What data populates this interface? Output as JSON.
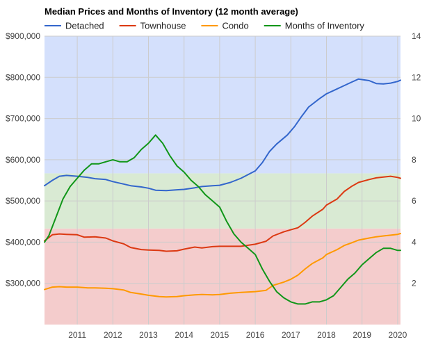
{
  "chart_data": {
    "type": "line",
    "title": "Median Prices and Months of Inventory (12 month average)",
    "legend_position": "top",
    "grid": true,
    "background_bands": [
      {
        "from": 200000,
        "to": 433000,
        "color": "#f4cccc"
      },
      {
        "from": 433000,
        "to": 567000,
        "color": "#d9ead3"
      },
      {
        "from": 567000,
        "to": 900000,
        "color": "#d4e0fc"
      }
    ],
    "x_ticks": [
      "2011",
      "2012",
      "2013",
      "2014",
      "2015",
      "2016",
      "2017",
      "2018",
      "2019",
      "2020"
    ],
    "x_tick_values": [
      2011,
      2012,
      2013,
      2014,
      2015,
      2016,
      2017,
      2018,
      2019,
      2020
    ],
    "xlim": [
      2010.08,
      2020.08
    ],
    "y_left": {
      "ylim": [
        200000,
        900000
      ],
      "ticks": [
        "$300,000",
        "$400,000",
        "$500,000",
        "$600,000",
        "$700,000",
        "$800,000",
        "$900,000"
      ],
      "tick_values": [
        300000,
        400000,
        500000,
        600000,
        700000,
        800000,
        900000
      ]
    },
    "y_right": {
      "ylim": [
        0,
        14
      ],
      "ticks": [
        "2",
        "4",
        "6",
        "8",
        "10",
        "12",
        "14"
      ],
      "tick_values": [
        2,
        4,
        6,
        8,
        10,
        12,
        14
      ]
    },
    "series": [
      {
        "name": "Detached",
        "color": "#3366cc",
        "axis": "left",
        "x": [
          2010.08,
          2010.3,
          2010.5,
          2010.7,
          2011.0,
          2011.3,
          2011.5,
          2011.8,
          2012.0,
          2012.3,
          2012.5,
          2012.8,
          2013.0,
          2013.2,
          2013.5,
          2013.8,
          2014.0,
          2014.3,
          2014.5,
          2014.8,
          2015.0,
          2015.3,
          2015.6,
          2016.0,
          2016.2,
          2016.4,
          2016.6,
          2016.9,
          2017.1,
          2017.3,
          2017.5,
          2017.8,
          2018.0,
          2018.2,
          2018.5,
          2018.7,
          2018.9,
          2019.2,
          2019.4,
          2019.6,
          2019.8,
          2020.0,
          2020.08
        ],
        "values": [
          537000,
          550000,
          560000,
          562000,
          560000,
          557000,
          554000,
          552000,
          547000,
          541000,
          537000,
          534000,
          531000,
          526000,
          525000,
          527000,
          528000,
          532000,
          535000,
          537000,
          538000,
          545000,
          555000,
          573000,
          593000,
          620000,
          638000,
          660000,
          680000,
          705000,
          728000,
          748000,
          760000,
          768000,
          780000,
          788000,
          796000,
          792000,
          785000,
          784000,
          786000,
          790000,
          793000
        ]
      },
      {
        "name": "Townhouse",
        "color": "#dc3912",
        "axis": "left",
        "x": [
          2010.08,
          2010.3,
          2010.5,
          2010.7,
          2011.0,
          2011.2,
          2011.5,
          2011.8,
          2012.0,
          2012.3,
          2012.5,
          2012.8,
          2013.0,
          2013.3,
          2013.5,
          2013.8,
          2014.0,
          2014.3,
          2014.5,
          2014.8,
          2015.0,
          2015.3,
          2015.6,
          2016.0,
          2016.3,
          2016.5,
          2016.8,
          2017.0,
          2017.2,
          2017.4,
          2017.6,
          2017.9,
          2018.0,
          2018.3,
          2018.5,
          2018.7,
          2018.9,
          2019.2,
          2019.4,
          2019.6,
          2019.8,
          2020.0,
          2020.08
        ],
        "values": [
          403000,
          418000,
          420000,
          419000,
          418000,
          412000,
          413000,
          410000,
          403000,
          396000,
          387000,
          382000,
          381000,
          380000,
          378000,
          379000,
          383000,
          388000,
          386000,
          389000,
          390000,
          390000,
          390000,
          395000,
          402000,
          415000,
          425000,
          430000,
          435000,
          448000,
          463000,
          480000,
          490000,
          505000,
          523000,
          535000,
          545000,
          552000,
          556000,
          558000,
          560000,
          557000,
          555000
        ]
      },
      {
        "name": "Condo",
        "color": "#ff9900",
        "axis": "left",
        "x": [
          2010.08,
          2010.3,
          2010.5,
          2010.7,
          2011.0,
          2011.3,
          2011.5,
          2011.8,
          2012.0,
          2012.3,
          2012.5,
          2012.8,
          2013.0,
          2013.3,
          2013.5,
          2013.8,
          2014.0,
          2014.3,
          2014.5,
          2014.8,
          2015.0,
          2015.3,
          2015.6,
          2016.0,
          2016.3,
          2016.5,
          2016.8,
          2017.0,
          2017.2,
          2017.4,
          2017.6,
          2017.9,
          2018.0,
          2018.3,
          2018.5,
          2018.7,
          2018.9,
          2019.2,
          2019.4,
          2019.6,
          2019.8,
          2020.0,
          2020.08
        ],
        "values": [
          285000,
          291000,
          292000,
          291000,
          291000,
          289000,
          289000,
          288000,
          287000,
          284000,
          278000,
          274000,
          271000,
          268000,
          267000,
          268000,
          270000,
          272000,
          273000,
          272000,
          273000,
          276000,
          278000,
          280000,
          283000,
          295000,
          303000,
          310000,
          320000,
          335000,
          348000,
          362000,
          370000,
          382000,
          392000,
          398000,
          405000,
          410000,
          413000,
          415000,
          417000,
          419000,
          421000
        ]
      },
      {
        "name": "Months of Inventory",
        "color": "#109618",
        "axis": "right",
        "x": [
          2010.08,
          2010.2,
          2010.4,
          2010.6,
          2010.8,
          2011.0,
          2011.2,
          2011.4,
          2011.6,
          2011.8,
          2012.0,
          2012.2,
          2012.4,
          2012.6,
          2012.8,
          2013.0,
          2013.2,
          2013.4,
          2013.6,
          2013.8,
          2014.0,
          2014.2,
          2014.4,
          2014.6,
          2014.8,
          2015.0,
          2015.2,
          2015.4,
          2015.6,
          2015.8,
          2016.0,
          2016.2,
          2016.4,
          2016.6,
          2016.8,
          2017.0,
          2017.2,
          2017.4,
          2017.6,
          2017.8,
          2018.0,
          2018.2,
          2018.4,
          2018.6,
          2018.8,
          2019.0,
          2019.2,
          2019.4,
          2019.6,
          2019.8,
          2020.0,
          2020.08
        ],
        "values": [
          4.0,
          4.3,
          5.2,
          6.1,
          6.7,
          7.1,
          7.5,
          7.8,
          7.8,
          7.9,
          8.0,
          7.9,
          7.9,
          8.1,
          8.5,
          8.8,
          9.2,
          8.8,
          8.2,
          7.7,
          7.4,
          7.0,
          6.7,
          6.3,
          6.0,
          5.7,
          5.0,
          4.4,
          4.0,
          3.7,
          3.4,
          2.7,
          2.1,
          1.6,
          1.3,
          1.1,
          1.0,
          1.0,
          1.1,
          1.1,
          1.2,
          1.4,
          1.8,
          2.2,
          2.5,
          2.9,
          3.2,
          3.5,
          3.7,
          3.7,
          3.6,
          3.6
        ]
      }
    ]
  }
}
